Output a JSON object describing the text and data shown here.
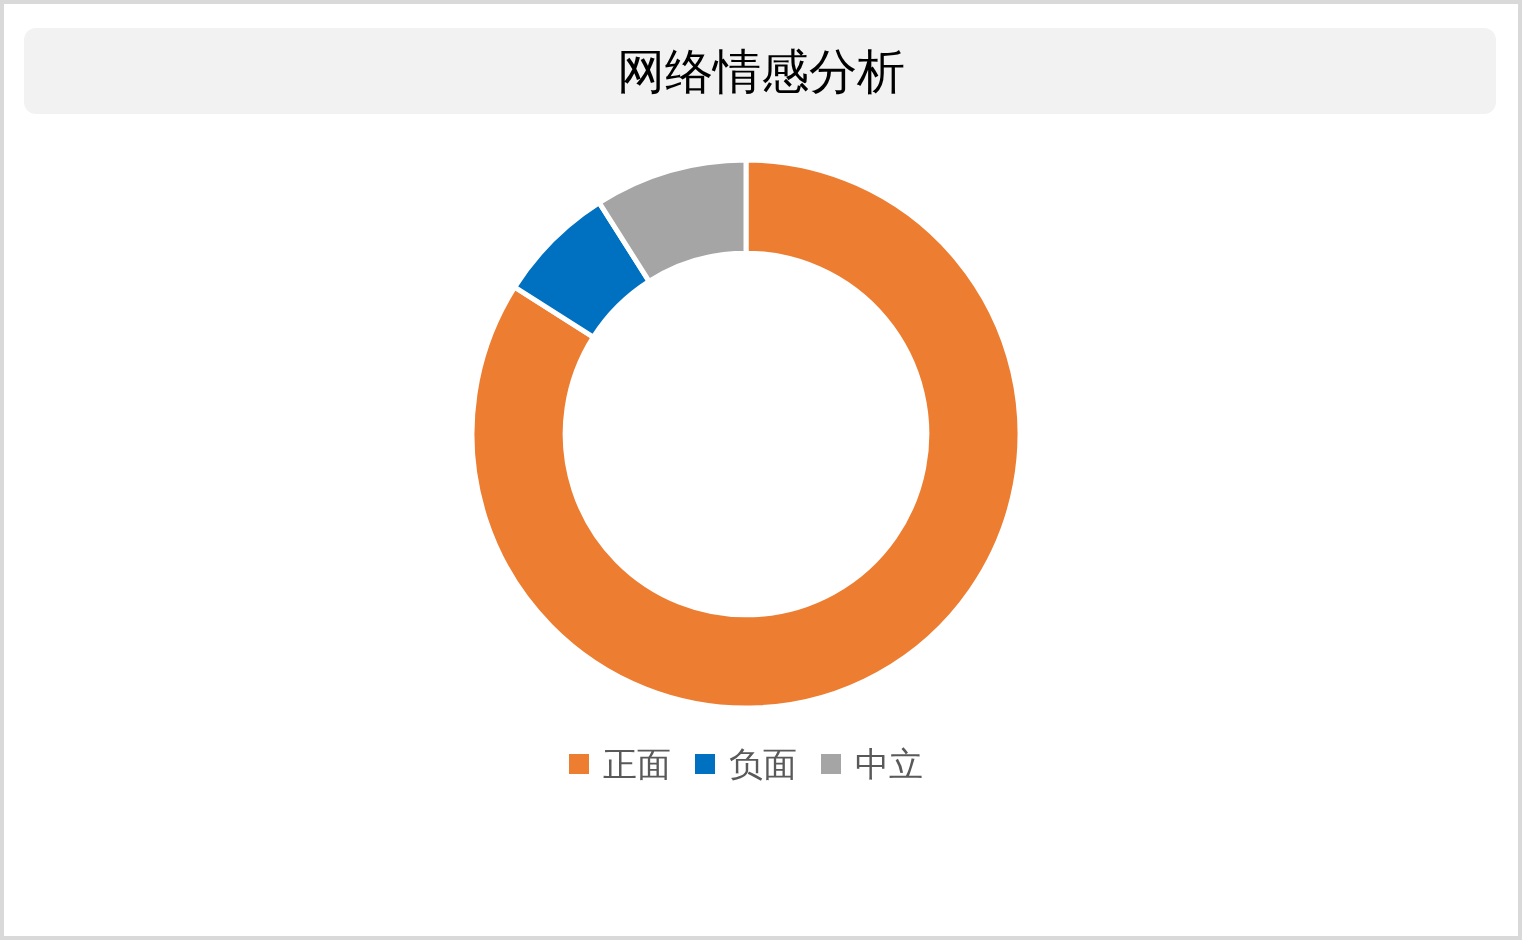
{
  "chart_data": {
    "type": "donut",
    "title": "网络情感分析",
    "categories": [
      "正面",
      "负面",
      "中立"
    ],
    "values": [
      84,
      7,
      9
    ],
    "colors": [
      "#ed7d31",
      "#0070c0",
      "#a5a5a5"
    ],
    "legend": "bottom"
  }
}
